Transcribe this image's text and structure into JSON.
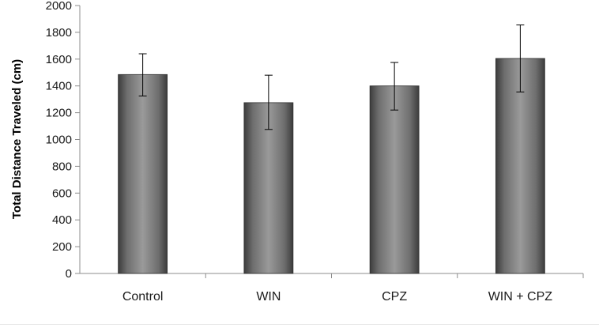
{
  "chart_data": {
    "type": "bar",
    "title": "",
    "xlabel": "",
    "ylabel": "Total Distance Traveled (cm)",
    "categories": [
      "Control",
      "WIN",
      "CPZ",
      "WIN + CPZ"
    ],
    "values": [
      1485,
      1275,
      1400,
      1605
    ],
    "error_bars": [
      {
        "low": 1325,
        "high": 1640
      },
      {
        "low": 1075,
        "high": 1480
      },
      {
        "low": 1220,
        "high": 1575
      },
      {
        "low": 1355,
        "high": 1855
      }
    ],
    "ylim": [
      0,
      2000
    ],
    "yticks": [
      "0",
      "200",
      "400",
      "600",
      "800",
      "1000",
      "1200",
      "1400",
      "1600",
      "1800",
      "2000"
    ],
    "grid": false,
    "legend": "none",
    "colors": {
      "bar": "#6e6e6e",
      "bar_highlight": "#9a9a9a",
      "bar_shadow": "#3c3c3c",
      "axis": "#8c8c8c",
      "error_bar": "#000000"
    }
  }
}
